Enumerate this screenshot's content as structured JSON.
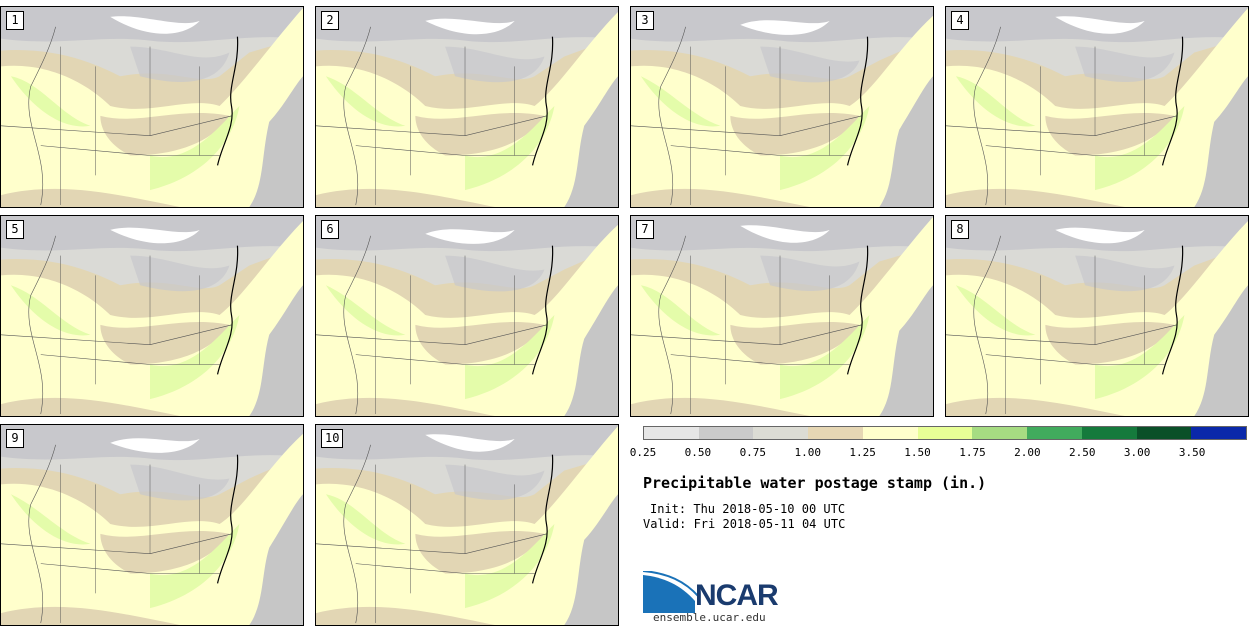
{
  "members": [
    {
      "label": "1"
    },
    {
      "label": "2"
    },
    {
      "label": "3"
    },
    {
      "label": "4"
    },
    {
      "label": "5"
    },
    {
      "label": "6"
    },
    {
      "label": "7"
    },
    {
      "label": "8"
    },
    {
      "label": "9"
    },
    {
      "label": "10"
    }
  ],
  "colorbar": {
    "ticks": [
      "0.25",
      "0.50",
      "0.75",
      "1.00",
      "1.25",
      "1.50",
      "1.75",
      "2.00",
      "2.50",
      "3.00",
      "3.50"
    ],
    "colors": [
      "#e6e6e6",
      "#cacaca",
      "#dcdcd4",
      "#e6d7b4",
      "#ffffcc",
      "#e7ff96",
      "#a6dc82",
      "#41ab5d",
      "#157a3c",
      "#0a5028",
      "#0a28aa"
    ]
  },
  "title": "Precipitable water postage stamp (in.)",
  "init": "Init: Thu 2018-05-10 00 UTC",
  "valid": "Valid: Fri 2018-05-11 04 UTC",
  "logo": {
    "text": "NCAR",
    "url": "ensemble.ucar.edu"
  },
  "map_colors": {
    "base": "#dadad6",
    "tan": "#e2d6b4",
    "cream": "#ffffcc",
    "green": "#e4fcaa",
    "gray": "#c8c8cc",
    "white": "#ffffff",
    "ocean_gray": "#c6c6c6"
  }
}
